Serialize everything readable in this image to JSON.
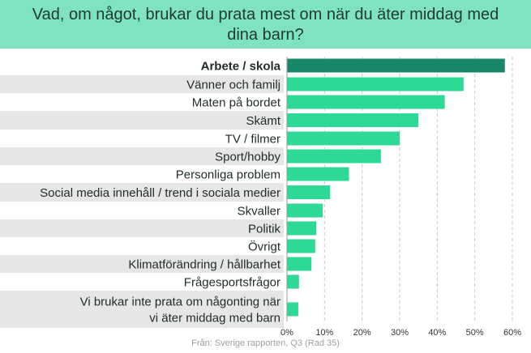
{
  "title": "Vad, om något, brukar du prata mest om när du äter middag med dina barn?",
  "source": "Från: Sverige rapporten, Q3 (Rad 35)",
  "colors": {
    "header_bg": "#7fe3c2",
    "bar": "#2ed895",
    "bar_highlight": "#17876a",
    "stripe": "#e6e6e6",
    "text": "#1f2a2a"
  },
  "chart_data": {
    "type": "bar",
    "orientation": "horizontal",
    "title": "Vad, om något, brukar du prata mest om när du äter middag med dina barn?",
    "categories": [
      "Arbete / skola",
      "Vänner och familj",
      "Maten på bordet",
      "Skämt",
      "TV / filmer",
      "Sport/hobby",
      "Personliga problem",
      "Social media innehåll / trend i sociala medier",
      "Skvaller",
      "Politik",
      "Övrigt",
      "Klimatförändring / hållbarhet",
      "Frågesportsfrågor",
      "Vi brukar inte prata om någonting när vi äter middag med barn"
    ],
    "category_lines": [
      [
        "Arbete / skola"
      ],
      [
        "Vänner och familj"
      ],
      [
        "Maten på bordet"
      ],
      [
        "Skämt"
      ],
      [
        "TV / filmer"
      ],
      [
        "Sport/hobby"
      ],
      [
        "Personliga problem"
      ],
      [
        "Social media innehåll / trend i sociala medier"
      ],
      [
        "Skvaller"
      ],
      [
        "Politik"
      ],
      [
        "Övrigt"
      ],
      [
        "Klimatförändring / hållbarhet"
      ],
      [
        "Frågesportsfrågor"
      ],
      [
        "Vi brukar inte prata om någonting när",
        "vi äter middag med barn"
      ]
    ],
    "values": [
      58,
      47,
      42,
      35,
      30,
      25,
      16.5,
      11.5,
      9.5,
      7.8,
      7.5,
      6.5,
      3.2,
      3.0
    ],
    "highlight_index": 0,
    "xlim": [
      0,
      60
    ],
    "xticks": [
      0,
      10,
      20,
      30,
      40,
      50,
      60
    ],
    "tick_format": "{v}%",
    "grid": "vertical-dashed"
  }
}
